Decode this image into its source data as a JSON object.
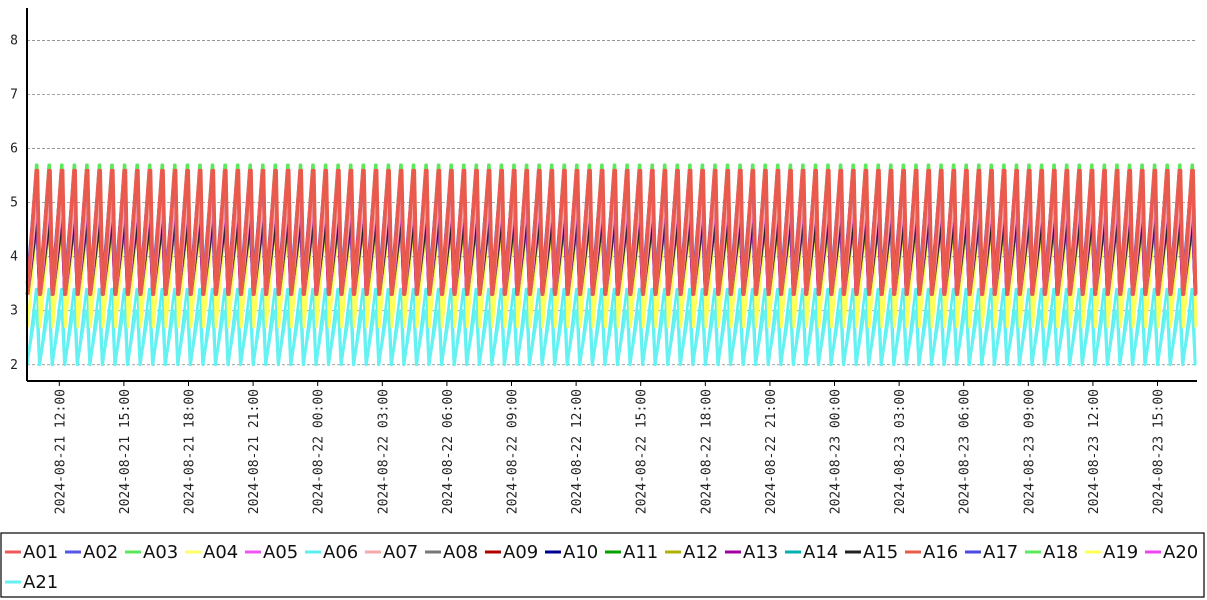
{
  "chart_data": {
    "type": "line",
    "title": "",
    "xlabel": "",
    "ylabel": "",
    "x_range": [
      "2024-08-21 10:30",
      "2024-08-23 16:50"
    ],
    "ylim": [
      1.7,
      8.6
    ],
    "y_ticks": [
      "2",
      "3",
      "4",
      "5",
      "6",
      "7",
      "8"
    ],
    "x_tick_labels": [
      "2024-08-21 12:00",
      "2024-08-21 15:00",
      "2024-08-21 18:00",
      "2024-08-21 21:00",
      "2024-08-22 00:00",
      "2024-08-22 03:00",
      "2024-08-22 06:00",
      "2024-08-22 09:00",
      "2024-08-22 12:00",
      "2024-08-22 15:00",
      "2024-08-22 18:00",
      "2024-08-22 21:00",
      "2024-08-23 00:00",
      "2024-08-23 03:00",
      "2024-08-23 06:00",
      "2024-08-23 09:00",
      "2024-08-23 12:00",
      "2024-08-23 15:00"
    ],
    "grid": "horizontal dashed",
    "legend_position": "bottom",
    "series_shape": "sawtooth, period about 35 minutes",
    "series": [
      {
        "name": "A01",
        "color": "#f05a5a",
        "min": 3.3,
        "max": 5.6
      },
      {
        "name": "A02",
        "color": "#5555e6",
        "min": 3.4,
        "max": 5.5
      },
      {
        "name": "A03",
        "color": "#5ae65a",
        "min": 3.5,
        "max": 5.6
      },
      {
        "name": "A04",
        "color": "#ffff66",
        "min": 2.8,
        "max": 4.6
      },
      {
        "name": "A05",
        "color": "#ee55ee",
        "min": 3.3,
        "max": 5.2
      },
      {
        "name": "A06",
        "color": "#5af0f0",
        "min": 2.0,
        "max": 3.4
      },
      {
        "name": "A07",
        "color": "#f5aaaa",
        "min": 3.3,
        "max": 5.0
      },
      {
        "name": "A08",
        "color": "#777777",
        "min": 3.3,
        "max": 4.6
      },
      {
        "name": "A09",
        "color": "#b00000",
        "min": 3.3,
        "max": 4.6
      },
      {
        "name": "A10",
        "color": "#000090",
        "min": 3.3,
        "max": 4.6
      },
      {
        "name": "A11",
        "color": "#00a000",
        "min": 3.3,
        "max": 4.6
      },
      {
        "name": "A12",
        "color": "#b0b000",
        "min": 3.3,
        "max": 4.6
      },
      {
        "name": "A13",
        "color": "#a000a0",
        "min": 3.3,
        "max": 4.6
      },
      {
        "name": "A14",
        "color": "#00b0b0",
        "min": 3.3,
        "max": 4.6
      },
      {
        "name": "A15",
        "color": "#222222",
        "min": 3.3,
        "max": 4.6
      },
      {
        "name": "A16",
        "color": "#e85a4a",
        "min": 3.3,
        "max": 5.6
      },
      {
        "name": "A17",
        "color": "#4a4ae0",
        "min": 3.5,
        "max": 5.5
      },
      {
        "name": "A18",
        "color": "#5aea5a",
        "min": 3.4,
        "max": 5.7
      },
      {
        "name": "A19",
        "color": "#ffff55",
        "min": 2.7,
        "max": 4.6
      },
      {
        "name": "A20",
        "color": "#ee44ee",
        "min": 3.3,
        "max": 5.0
      },
      {
        "name": "A21",
        "color": "#66f2f2",
        "min": 2.0,
        "max": 3.0
      }
    ]
  }
}
